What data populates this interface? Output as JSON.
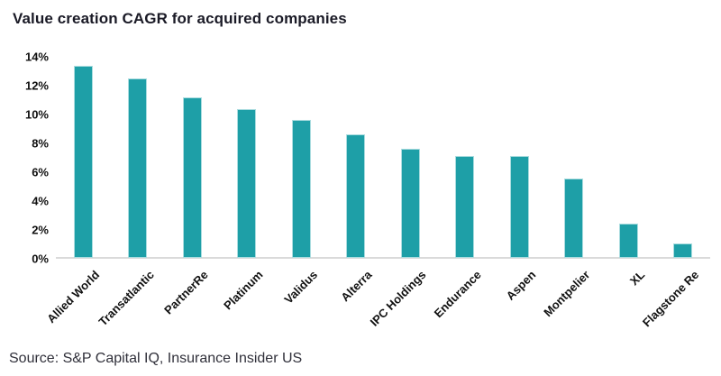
{
  "title": "Value creation CAGR for acquired companies",
  "source_note": "Source: S&P Capital IQ, Insurance Insider US",
  "chart_data": {
    "type": "bar",
    "title": "Value creation CAGR for acquired companies",
    "categories": [
      "Allied World",
      "Transatlantic",
      "PartnerRe",
      "Platinum",
      "Validus",
      "Alterra",
      "IPC Holdings",
      "Endurance",
      "Aspen",
      "Montpelier",
      "XL",
      "Flagstone Re"
    ],
    "values": [
      13.3,
      12.4,
      11.1,
      10.3,
      9.5,
      8.5,
      7.5,
      7.0,
      7.0,
      5.4,
      2.3,
      0.9
    ],
    "unit": "%",
    "xlabel": "",
    "ylabel": "",
    "ylim": [
      0,
      14
    ],
    "ytick_step": 2,
    "ytick_labels": [
      "0%",
      "2%",
      "4%",
      "6%",
      "8%",
      "10%",
      "12%",
      "14%"
    ],
    "grid": false,
    "legend": false,
    "bar_color": "#1e9fa7",
    "bar_border_color": "#aadcdf",
    "axis_line_color": "#dadada"
  },
  "colors": {
    "bar": "#1e9fa7",
    "bar_border": "#aadcdf",
    "axis_line": "#dadada",
    "title_text": "#1a1a26",
    "axis_label_text": "#111111",
    "source_text": "#30303a"
  }
}
